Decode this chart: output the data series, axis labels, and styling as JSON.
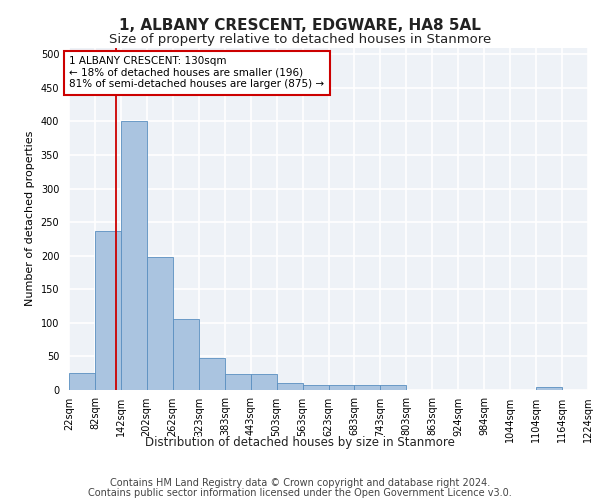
{
  "title": "1, ALBANY CRESCENT, EDGWARE, HA8 5AL",
  "subtitle": "Size of property relative to detached houses in Stanmore",
  "xlabel": "Distribution of detached houses by size in Stanmore",
  "ylabel": "Number of detached properties",
  "bin_edges": [
    22,
    82,
    142,
    202,
    262,
    323,
    383,
    443,
    503,
    563,
    623,
    683,
    743,
    803,
    863,
    924,
    984,
    1044,
    1104,
    1164,
    1224
  ],
  "bar_heights": [
    25,
    237,
    400,
    198,
    105,
    48,
    24,
    24,
    10,
    8,
    8,
    8,
    7,
    0,
    0,
    0,
    0,
    0,
    5,
    0
  ],
  "bar_color": "#aac4e0",
  "bar_edge_color": "#5a8fc0",
  "property_size": 130,
  "red_line_color": "#cc0000",
  "annotation_text": "1 ALBANY CRESCENT: 130sqm\n← 18% of detached houses are smaller (196)\n81% of semi-detached houses are larger (875) →",
  "annotation_box_color": "white",
  "annotation_box_edge": "#cc0000",
  "footer_line1": "Contains HM Land Registry data © Crown copyright and database right 2024.",
  "footer_line2": "Contains public sector information licensed under the Open Government Licence v3.0.",
  "ylim": [
    0,
    510
  ],
  "background_color": "#eef2f7",
  "grid_color": "#ffffff",
  "title_fontsize": 11,
  "subtitle_fontsize": 9.5,
  "xlabel_fontsize": 8.5,
  "ylabel_fontsize": 8,
  "tick_fontsize": 7,
  "annotation_fontsize": 7.5,
  "footer_fontsize": 7
}
